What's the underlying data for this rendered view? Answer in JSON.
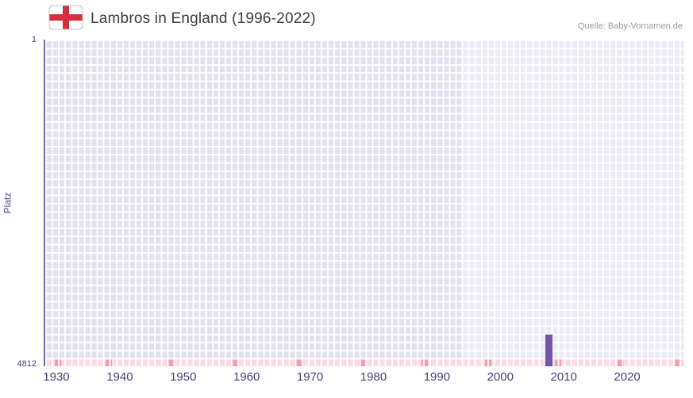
{
  "header": {
    "title": "Lambros in England (1996-2022)",
    "source": "Quelle: Baby-Vornamen.de",
    "flag_icon": "england-flag-icon"
  },
  "chart_data": {
    "type": "bar",
    "title": "Lambros in England (1996-2022)",
    "xlabel": "",
    "ylabel": "Platz",
    "x_ticks": [
      1930,
      1940,
      1950,
      1960,
      1970,
      1980,
      1990,
      2000,
      2010,
      2020
    ],
    "y_ticks": [
      "1",
      "4812"
    ],
    "ylim": [
      1,
      4812
    ],
    "y_axis_inverted": true,
    "xlim": [
      1928,
      2029
    ],
    "grid": true,
    "legend": false,
    "series": [
      {
        "name": "Platz",
        "points": [
          {
            "year": 2007,
            "rank": 4345
          }
        ]
      }
    ],
    "data_region_start_year": 1994,
    "bottom_strip_marker_years": [
      1930,
      1938,
      1948,
      1958,
      1968,
      1978,
      1988,
      1998,
      2009,
      2019,
      2028
    ],
    "colors": {
      "bar": "#7056a6",
      "plot_bg_before_data": "#e4e1ef",
      "plot_bg_data_period": "#edebf7",
      "grid_line": "#ffffff",
      "axis_line": "#7a68ad",
      "tick_text": "#4a4072",
      "strip_bg": "#f8dbe3",
      "strip_marker": "#efa0b1",
      "flag_red": "#d62e3c"
    }
  }
}
